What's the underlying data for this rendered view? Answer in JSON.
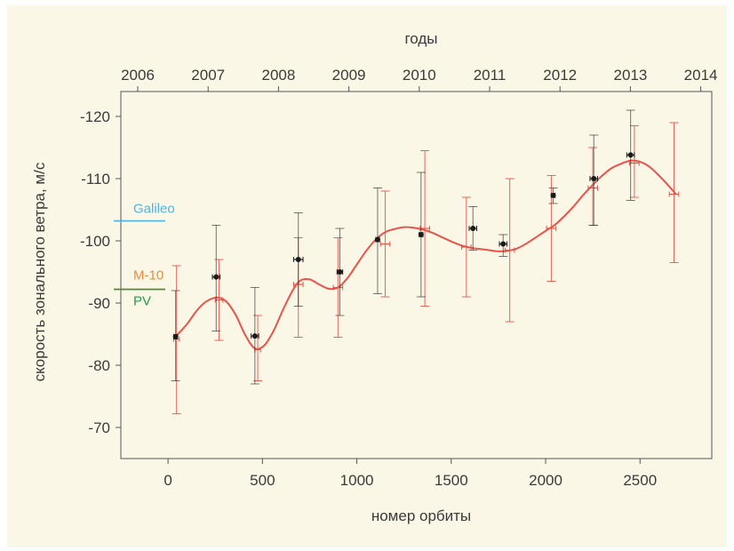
{
  "chart_data": {
    "type": "scatter",
    "top_axis": {
      "label": "годы",
      "ticks": [
        "2006",
        "2007",
        "2008",
        "2009",
        "2010",
        "2011",
        "2012",
        "2013",
        "2014"
      ]
    },
    "xlabel": "номер орбиты",
    "ylabel": "скорость зонального ветра, м/с",
    "xlim": [
      -250,
      2880
    ],
    "ylim": [
      -65,
      -124
    ],
    "x_ticks": [
      0,
      500,
      1000,
      1500,
      2000,
      2500
    ],
    "y_ticks": [
      -70,
      -80,
      -90,
      -100,
      -110,
      -120
    ],
    "y_tick_labels": [
      "-70",
      "-80",
      "-90",
      "-100",
      "-110",
      "-120"
    ],
    "grid": false,
    "reference_lines": [
      {
        "name": "Galileo",
        "y": -103.2,
        "color": "#4bb4e6"
      },
      {
        "name": "M-10",
        "y": -92.2,
        "color": "#f08a3c"
      },
      {
        "name": "PV",
        "y": -92.2,
        "color": "#2a9a4a"
      }
    ],
    "series": [
      {
        "color": "#1a1a1a",
        "points": [
          {
            "x": 40,
            "y": -84.6,
            "ylo": -77.5,
            "yhi": -92.0,
            "xerr": 10
          },
          {
            "x": 255,
            "y": -94.2,
            "ylo": -85.5,
            "yhi": -102.5,
            "xerr": 20
          },
          {
            "x": 460,
            "y": -84.7,
            "ylo": -77.0,
            "yhi": -92.5,
            "xerr": 20
          },
          {
            "x": 690,
            "y": -97.0,
            "ylo": -89.5,
            "yhi": -104.5,
            "xerr": 25
          },
          {
            "x": 910,
            "y": -95.0,
            "ylo": -88.0,
            "yhi": -102.0,
            "xerr": 15
          },
          {
            "x": 1110,
            "y": -100.2,
            "ylo": -91.5,
            "yhi": -108.5,
            "xerr": 10
          },
          {
            "x": 1340,
            "y": -101.0,
            "ylo": -91.0,
            "yhi": -111.0,
            "xerr": 10
          },
          {
            "x": 1615,
            "y": -102.0,
            "ylo": -98.5,
            "yhi": -105.5,
            "xerr": 20
          },
          {
            "x": 1775,
            "y": -99.5,
            "ylo": -97.5,
            "yhi": -101.0,
            "xerr": 20
          },
          {
            "x": 2040,
            "y": -107.3,
            "ylo": -106.0,
            "yhi": -108.5,
            "xerr": 10
          },
          {
            "x": 2255,
            "y": -110.0,
            "ylo": -102.5,
            "yhi": -117.0,
            "xerr": 20
          },
          {
            "x": 2450,
            "y": -113.8,
            "ylo": -106.5,
            "yhi": -121.0,
            "xerr": 20
          }
        ]
      },
      {
        "color": "#e8534a",
        "points": [
          {
            "x": 45,
            "y": -84.2,
            "ylo": -72.2,
            "yhi": -96.0,
            "xerr": 15
          },
          {
            "x": 270,
            "y": -90.5,
            "ylo": -84.0,
            "yhi": -97.0,
            "xerr": 20
          },
          {
            "x": 475,
            "y": -82.5,
            "ylo": -77.5,
            "yhi": -88.0,
            "xerr": 15
          },
          {
            "x": 690,
            "y": -93.0,
            "ylo": -84.5,
            "yhi": -100.5,
            "xerr": 25
          },
          {
            "x": 900,
            "y": -92.5,
            "ylo": -84.5,
            "yhi": -100.5,
            "xerr": 25
          },
          {
            "x": 1150,
            "y": -99.5,
            "ylo": -91.0,
            "yhi": -108.0,
            "xerr": 25
          },
          {
            "x": 1360,
            "y": -102.0,
            "ylo": -89.5,
            "yhi": -114.5,
            "xerr": 25
          },
          {
            "x": 1580,
            "y": -99.0,
            "ylo": -91.0,
            "yhi": -107.0,
            "xerr": 25
          },
          {
            "x": 1810,
            "y": -98.5,
            "ylo": -87.0,
            "yhi": -110.0,
            "xerr": 25
          },
          {
            "x": 2030,
            "y": -102.0,
            "ylo": -93.5,
            "yhi": -110.5,
            "xerr": 25
          },
          {
            "x": 2250,
            "y": -108.5,
            "ylo": -102.5,
            "yhi": -115.0,
            "xerr": 25
          },
          {
            "x": 2470,
            "y": -112.5,
            "ylo": -107.0,
            "yhi": -118.5,
            "xerr": 25
          },
          {
            "x": 2680,
            "y": -107.5,
            "ylo": -96.5,
            "yhi": -119.0,
            "xerr": 25
          }
        ]
      }
    ],
    "trend_line": {
      "color": "#e8534a",
      "points": [
        [
          40,
          -84.6
        ],
        [
          100,
          -86.6
        ],
        [
          150,
          -88.7
        ],
        [
          200,
          -90.2
        ],
        [
          260,
          -90.9
        ],
        [
          310,
          -90.2
        ],
        [
          360,
          -88.0
        ],
        [
          410,
          -84.8
        ],
        [
          460,
          -82.7
        ],
        [
          510,
          -83.2
        ],
        [
          560,
          -85.6
        ],
        [
          610,
          -89.0
        ],
        [
          660,
          -92.0
        ],
        [
          700,
          -93.6
        ],
        [
          750,
          -93.8
        ],
        [
          800,
          -93.0
        ],
        [
          850,
          -92.3
        ],
        [
          900,
          -92.5
        ],
        [
          950,
          -94.0
        ],
        [
          1000,
          -96.2
        ],
        [
          1050,
          -98.4
        ],
        [
          1100,
          -100.2
        ],
        [
          1150,
          -101.4
        ],
        [
          1200,
          -101.9
        ],
        [
          1250,
          -102.2
        ],
        [
          1300,
          -102.1
        ],
        [
          1350,
          -101.8
        ],
        [
          1400,
          -101.3
        ],
        [
          1450,
          -100.6
        ],
        [
          1500,
          -99.9
        ],
        [
          1550,
          -99.3
        ],
        [
          1600,
          -98.9
        ],
        [
          1650,
          -98.7
        ],
        [
          1700,
          -98.5
        ],
        [
          1750,
          -98.3
        ],
        [
          1800,
          -98.4
        ],
        [
          1850,
          -98.8
        ],
        [
          1900,
          -99.6
        ],
        [
          1950,
          -100.6
        ],
        [
          2000,
          -101.6
        ],
        [
          2050,
          -102.6
        ],
        [
          2100,
          -104.0
        ],
        [
          2150,
          -105.6
        ],
        [
          2200,
          -107.4
        ],
        [
          2250,
          -109.0
        ],
        [
          2300,
          -110.5
        ],
        [
          2350,
          -111.7
        ],
        [
          2400,
          -112.4
        ],
        [
          2450,
          -112.9
        ],
        [
          2500,
          -112.7
        ],
        [
          2550,
          -111.9
        ],
        [
          2600,
          -110.5
        ],
        [
          2650,
          -108.9
        ],
        [
          2690,
          -107.5
        ]
      ]
    }
  }
}
